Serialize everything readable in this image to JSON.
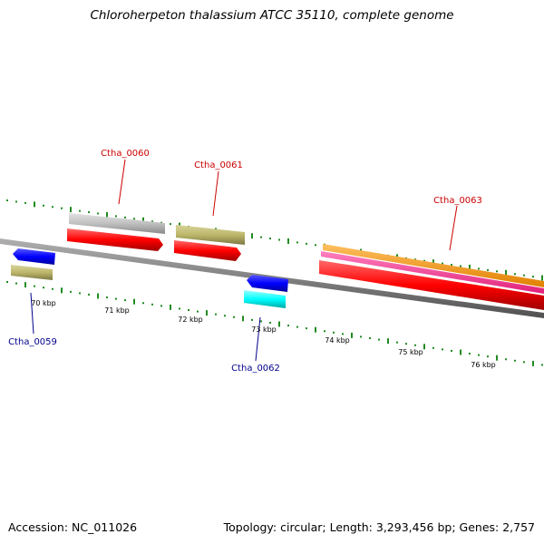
{
  "title": "Chloroherpeton thalassium ATCC 35110, complete genome",
  "footer": {
    "accession": "Accession: NC_011026",
    "summary": "Topology: circular; Length: 3,293,456 bp; Genes: 2,757"
  },
  "scale": {
    "labels": [
      "70 kbp",
      "71 kbp",
      "72 kbp",
      "73 kbp",
      "74 kbp",
      "75 kbp",
      "76 kbp"
    ],
    "tick_color": "#228b22"
  },
  "genes": [
    {
      "label": "Ctha_0059",
      "strand": "reverse",
      "color": "#00008b"
    },
    {
      "label": "Ctha_0060",
      "strand": "forward",
      "color": "#cc0000"
    },
    {
      "label": "Ctha_0061",
      "strand": "forward",
      "color": "#cc0000"
    },
    {
      "label": "Ctha_0062",
      "strand": "reverse",
      "color": "#00008b"
    },
    {
      "label": "Ctha_0063",
      "strand": "forward",
      "color": "#cc0000"
    }
  ],
  "colors": {
    "backbone": "#808080",
    "cds_forward": "#ff0000",
    "cds_reverse": "#0000ff",
    "feature_khaki": "#bdb76b",
    "feature_gray": "#c0c0c0",
    "feature_cyan": "#00ffff",
    "feature_orange": "#ff9900",
    "feature_magenta": "#ff3399"
  }
}
